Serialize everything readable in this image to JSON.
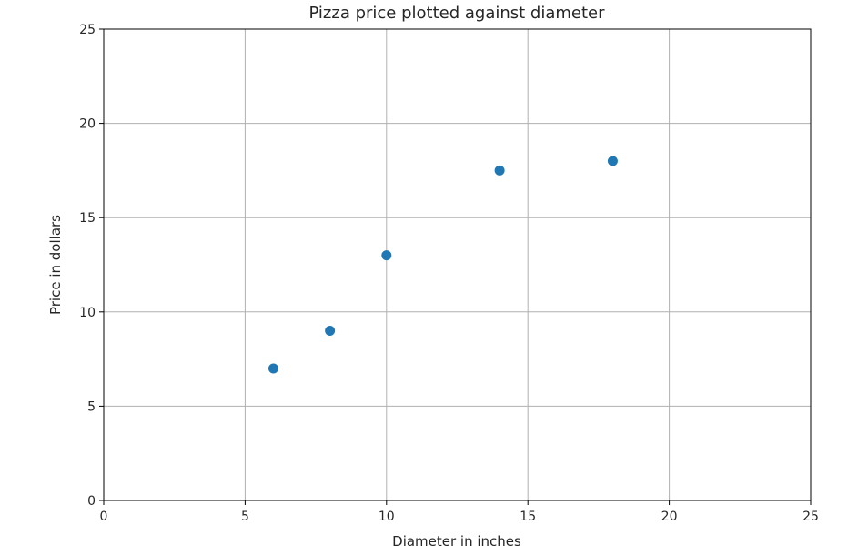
{
  "chart_data": {
    "type": "scatter",
    "title": "Pizza price plotted against diameter",
    "xlabel": "Diameter in inches",
    "ylabel": "Price in dollars",
    "xlim": [
      0,
      25
    ],
    "ylim": [
      0,
      25
    ],
    "xticks": [
      0,
      5,
      10,
      15,
      20,
      25
    ],
    "yticks": [
      0,
      5,
      10,
      15,
      20,
      25
    ],
    "grid": true,
    "series": [
      {
        "color": "#1f77b4",
        "points": [
          {
            "x": 6,
            "y": 7
          },
          {
            "x": 8,
            "y": 9
          },
          {
            "x": 10,
            "y": 13
          },
          {
            "x": 14,
            "y": 17.5
          },
          {
            "x": 18,
            "y": 18
          }
        ]
      }
    ]
  }
}
